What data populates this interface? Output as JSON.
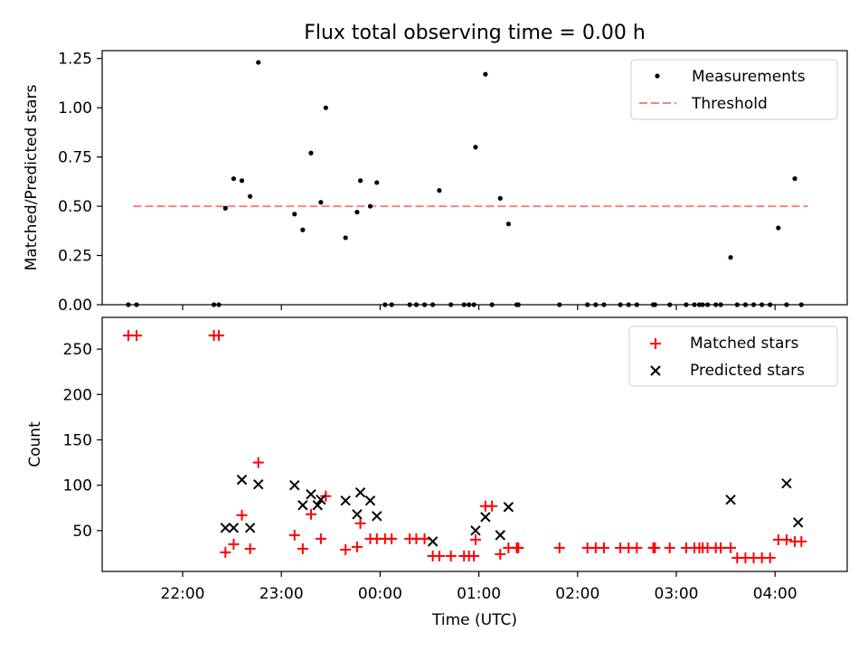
{
  "title": "Flux total observing time = 0.00 h",
  "colors": {
    "measurement": "#000000",
    "threshold": "#ff8080",
    "matched": "#ff0000",
    "predicted": "#000000"
  },
  "chart_data": [
    {
      "type": "scatter",
      "ylabel": "Matched/Predicted stars",
      "ylim": [
        0,
        1.29
      ],
      "yticks": [
        "0.00",
        "0.25",
        "0.50",
        "0.75",
        "1.00",
        "1.25"
      ],
      "legend": {
        "position": "top-right",
        "entries": [
          "Measurements",
          "Threshold"
        ]
      },
      "threshold": {
        "name": "Threshold",
        "y": 0.5,
        "x_range": [
          "21:30",
          "04:20"
        ]
      },
      "series": [
        {
          "name": "Measurements",
          "marker": "dot",
          "points": [
            [
              "21:27",
              0
            ],
            [
              "21:32",
              0
            ],
            [
              "22:19",
              0
            ],
            [
              "22:22",
              0
            ],
            [
              "22:26",
              0.49
            ],
            [
              "22:31",
              0.64
            ],
            [
              "22:36",
              0.63
            ],
            [
              "22:41",
              0.55
            ],
            [
              "22:46",
              1.23
            ],
            [
              "23:08",
              0.46
            ],
            [
              "23:13",
              0.38
            ],
            [
              "23:18",
              0.77
            ],
            [
              "23:24",
              0.52
            ],
            [
              "23:27",
              1.0
            ],
            [
              "23:39",
              0.34
            ],
            [
              "23:46",
              0.47
            ],
            [
              "23:48",
              0.63
            ],
            [
              "23:54",
              0.5
            ],
            [
              "23:58",
              0.62
            ],
            [
              "00:03",
              0
            ],
            [
              "00:07",
              0
            ],
            [
              "00:18",
              0
            ],
            [
              "00:22",
              0
            ],
            [
              "00:27",
              0
            ],
            [
              "00:32",
              0
            ],
            [
              "00:36",
              0.58
            ],
            [
              "00:43",
              0
            ],
            [
              "00:51",
              0
            ],
            [
              "00:54",
              0
            ],
            [
              "00:57",
              0
            ],
            [
              "00:58",
              0.8
            ],
            [
              "01:04",
              1.17
            ],
            [
              "01:08",
              0
            ],
            [
              "01:13",
              0.54
            ],
            [
              "01:18",
              0.41
            ],
            [
              "01:23",
              0
            ],
            [
              "01:24",
              0
            ],
            [
              "01:49",
              0
            ],
            [
              "02:06",
              0
            ],
            [
              "02:11",
              0
            ],
            [
              "02:16",
              0
            ],
            [
              "02:26",
              0
            ],
            [
              "02:31",
              0
            ],
            [
              "02:36",
              0
            ],
            [
              "02:46",
              0
            ],
            [
              "02:47",
              0
            ],
            [
              "02:56",
              0
            ],
            [
              "03:06",
              0
            ],
            [
              "03:11",
              0
            ],
            [
              "03:14",
              0
            ],
            [
              "03:16",
              0
            ],
            [
              "03:19",
              0
            ],
            [
              "03:24",
              0
            ],
            [
              "03:27",
              0
            ],
            [
              "03:33",
              0.24
            ],
            [
              "03:37",
              0
            ],
            [
              "03:42",
              0
            ],
            [
              "03:47",
              0
            ],
            [
              "03:52",
              0
            ],
            [
              "03:57",
              0
            ],
            [
              "04:02",
              0.39
            ],
            [
              "04:07",
              0
            ],
            [
              "04:12",
              0.64
            ],
            [
              "04:16",
              0
            ]
          ]
        }
      ]
    },
    {
      "type": "scatter",
      "xlabel": "Time (UTC)",
      "ylabel": "Count",
      "ylim": [
        5,
        285
      ],
      "xticks": [
        "22:00",
        "23:00",
        "00:00",
        "01:00",
        "02:00",
        "03:00",
        "04:00"
      ],
      "yticks": [
        "50",
        "100",
        "150",
        "200",
        "250"
      ],
      "legend": {
        "position": "top-right",
        "entries": [
          "Matched stars",
          "Predicted stars"
        ]
      },
      "series": [
        {
          "name": "Matched stars",
          "marker": "plus",
          "points": [
            [
              "21:27",
              265
            ],
            [
              "21:32",
              265
            ],
            [
              "22:19",
              265
            ],
            [
              "22:22",
              265
            ],
            [
              "22:26",
              26
            ],
            [
              "22:31",
              35
            ],
            [
              "22:36",
              67
            ],
            [
              "22:41",
              30
            ],
            [
              "22:46",
              125
            ],
            [
              "23:08",
              45
            ],
            [
              "23:13",
              30
            ],
            [
              "23:18",
              68
            ],
            [
              "23:24",
              41
            ],
            [
              "23:27",
              88
            ],
            [
              "23:39",
              29
            ],
            [
              "23:46",
              32
            ],
            [
              "23:48",
              58
            ],
            [
              "23:54",
              41
            ],
            [
              "23:58",
              41
            ],
            [
              "00:03",
              41
            ],
            [
              "00:07",
              41
            ],
            [
              "00:18",
              41
            ],
            [
              "00:22",
              41
            ],
            [
              "00:27",
              41
            ],
            [
              "00:32",
              22
            ],
            [
              "00:36",
              22
            ],
            [
              "00:43",
              22
            ],
            [
              "00:51",
              22
            ],
            [
              "00:54",
              22
            ],
            [
              "00:57",
              22
            ],
            [
              "00:58",
              40
            ],
            [
              "01:04",
              77
            ],
            [
              "01:08",
              77
            ],
            [
              "01:13",
              24
            ],
            [
              "01:18",
              31
            ],
            [
              "01:23",
              31
            ],
            [
              "01:24",
              31
            ],
            [
              "01:49",
              31
            ],
            [
              "02:06",
              31
            ],
            [
              "02:11",
              31
            ],
            [
              "02:16",
              31
            ],
            [
              "02:26",
              31
            ],
            [
              "02:31",
              31
            ],
            [
              "02:36",
              31
            ],
            [
              "02:46",
              31
            ],
            [
              "02:47",
              31
            ],
            [
              "02:56",
              31
            ],
            [
              "03:06",
              31
            ],
            [
              "03:11",
              31
            ],
            [
              "03:14",
              31
            ],
            [
              "03:16",
              31
            ],
            [
              "03:19",
              31
            ],
            [
              "03:24",
              31
            ],
            [
              "03:27",
              31
            ],
            [
              "03:33",
              31
            ],
            [
              "03:37",
              20
            ],
            [
              "03:42",
              20
            ],
            [
              "03:47",
              20
            ],
            [
              "03:52",
              20
            ],
            [
              "03:57",
              20
            ],
            [
              "04:02",
              40
            ],
            [
              "04:07",
              40
            ],
            [
              "04:12",
              38
            ],
            [
              "04:16",
              38
            ]
          ]
        },
        {
          "name": "Predicted stars",
          "marker": "x",
          "points": [
            [
              "22:26",
              53
            ],
            [
              "22:31",
              53
            ],
            [
              "22:36",
              106
            ],
            [
              "22:41",
              53
            ],
            [
              "22:46",
              101
            ],
            [
              "23:08",
              100
            ],
            [
              "23:13",
              78
            ],
            [
              "23:18",
              90
            ],
            [
              "23:22",
              78
            ],
            [
              "23:24",
              84
            ],
            [
              "23:39",
              83
            ],
            [
              "23:46",
              68
            ],
            [
              "23:48",
              92
            ],
            [
              "23:54",
              83
            ],
            [
              "23:58",
              66
            ],
            [
              "00:32",
              38
            ],
            [
              "00:58",
              50
            ],
            [
              "01:04",
              65
            ],
            [
              "01:13",
              45
            ],
            [
              "01:18",
              76
            ],
            [
              "03:33",
              84
            ],
            [
              "04:07",
              102
            ],
            [
              "04:14",
              59
            ]
          ]
        }
      ]
    }
  ]
}
